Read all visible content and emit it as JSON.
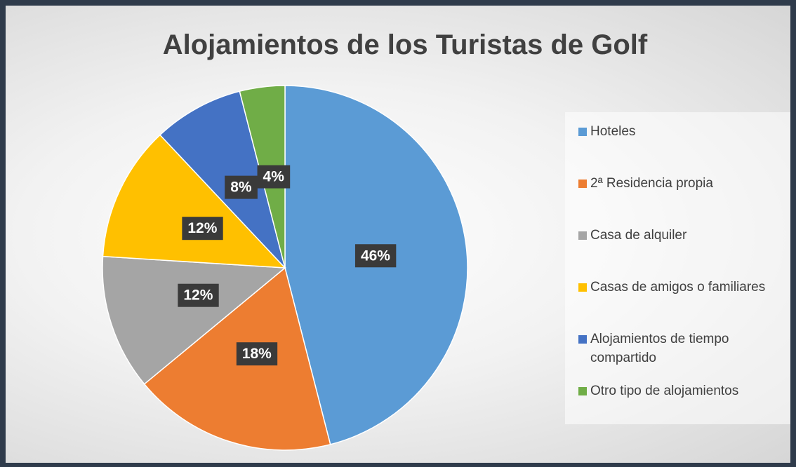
{
  "chart_data": {
    "type": "pie",
    "title": "Alojamientos de los Turistas de Golf",
    "categories": [
      "Hoteles",
      "2ª Residencia propia",
      "Casa de alquiler",
      "Casas de amigos o familiares",
      "Alojamientos de tiempo compartido",
      "Otro tipo de alojamientos"
    ],
    "values": [
      46,
      18,
      12,
      12,
      8,
      4
    ],
    "value_labels": [
      "46%",
      "18%",
      "12%",
      "12%",
      "8%",
      "4%"
    ],
    "colors": [
      "#5b9bd5",
      "#ed7d31",
      "#a5a5a5",
      "#ffc000",
      "#4472c4",
      "#70ad47"
    ],
    "legend": "right"
  }
}
